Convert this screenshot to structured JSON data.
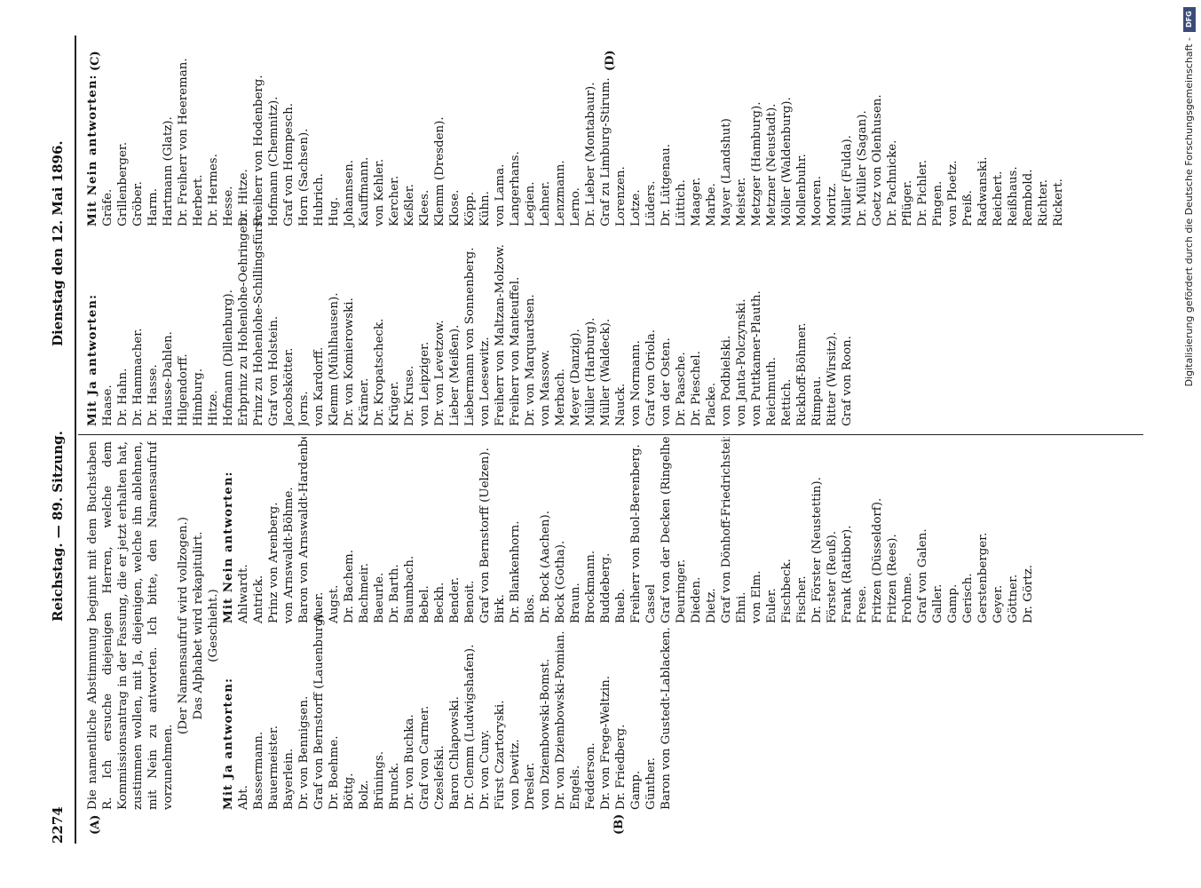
{
  "header": {
    "page_number": "2274",
    "session": "Reichstag. — 89. Sitzung.",
    "date": "Dienstag den 12. Mai 1896."
  },
  "markers": {
    "a": "(A)",
    "b": "(B)",
    "c": "(C)",
    "d": "(D)"
  },
  "intro_text": "Die namentliche Abstimmung beginnt mit dem Buchstaben R. Ich ersuche diejenigen Herren, welche dem Kommissionsantrag in der Fassung, die er jetzt erhalten hat, zustimmen wollen, mit Ja, diejenigen, welche ihn ablehnen, mit Nein zu antworten. Ich bitte, den Namensaufruf vorzunehmen.",
  "intro_lines": [
    "(Der Namensaufruf wird vollzogen.)",
    "Das Alphabet wird rekapitulirt.",
    "(Geschieht.)"
  ],
  "headings": {
    "ja": "Mit Ja antworten:",
    "nein": "Mit Nein antworten:"
  },
  "col1_ja": [
    "Abt.",
    "Bassermann.",
    "Bauermeister.",
    "Bayerlein.",
    "Dr. von Bennigsen.",
    "Graf von Bernstorff (Lauenburg).",
    "Dr. Boehme.",
    "Böttg.",
    "Bolz.",
    "Brünings.",
    "Brunck.",
    "Dr. von Buchka.",
    "Graf von Carmer.",
    "Czeslefski.",
    "Baron Chlapowski.",
    "Dr. Clemm (Ludwigshafen).",
    "Dr. von Cuny.",
    "Fürst Czartoryski.",
    "von Dewitz.",
    "Dresler.",
    "von Dziembowski-Bomst.",
    "Dr. von Dziembowski-Pomian.",
    "Engels.",
    "Fedderson.",
    "Dr. von Frege-Weltzin.",
    "Dr. Friedberg.",
    "Gamp.",
    "Günther.",
    "Baron von Gustedt-Lablacken."
  ],
  "col2_nein": [
    "Ahlwardt.",
    "Antrick.",
    "Prinz von Arenberg.",
    "von Arnswaldt-Böhme.",
    "Baron von Arnswaldt-Hardenbostel.",
    "Auer.",
    "Augst.",
    "Dr. Bachem.",
    "Bachmeir.",
    "Baeurle.",
    "Dr. Barth.",
    "Baumbach.",
    "Bebel.",
    "Beckh.",
    "Bender.",
    "Benoit.",
    "Graf von Bernstorff (Uelzen).",
    "Birk.",
    "Dr. Blankenhorn.",
    "Blos.",
    "Dr. Bock (Aachen).",
    "Bock (Gotha).",
    "Braun.",
    "Brockmann.",
    "Buddeberg.",
    "Bueb.",
    "Freiherr von Buol-Berenberg.",
    "Cassel",
    "Graf von der Decken (Ringelheim).",
    "Deuringer.",
    "Dieden.",
    "Dietz.",
    "Graf von Dönhoff-Friedrichstein.",
    "Ehni.",
    "von Elm.",
    "Euler.",
    "Fischbeck.",
    "Fischer.",
    "Dr. Förster (Neustettin).",
    "Förster (Reuß).",
    "Frank (Ratibor).",
    "Frese.",
    "Fritzen (Düsseldorf).",
    "Fritzen (Rees).",
    "Frohme.",
    "Graf von Galen.",
    "Galler.",
    "Gamp.",
    "Gerisch.",
    "Gerstenberger.",
    "Geyer.",
    "Göttner.",
    "Dr. Görtz."
  ],
  "col3_ja": [
    "Haase.",
    "Dr. Hahn.",
    "Dr. Hammacher.",
    "Dr. Hasse.",
    "Hausse-Dahlen.",
    "Hilgendorff.",
    "Himburg.",
    "Hitze.",
    "Hofmann (Dillenburg).",
    "Erbprinz zu Hohenlohe-Oehringen.",
    "Prinz zu Hohenlohe-Schillingsfürst.",
    "Graf von Holstein.",
    "Jacobskötter.",
    "Jorns.",
    "von Kardorff.",
    "Klemm (Mühlhausen).",
    "Dr. von Komierowski.",
    "Krämer.",
    "Dr. Kropatscheck.",
    "Krüger.",
    "Dr. Kruse.",
    "von Leipziger.",
    "Dr. von Levetzow.",
    "Lieber (Meißen).",
    "Liebermann von Sonnenberg.",
    "von Loesewitz.",
    "Freiherr von Maltzan-Molzow.",
    "Freiherr von Manteuffel.",
    "Dr. von Marquardsen.",
    "von Massow.",
    "Merbach.",
    "Meyer (Danzig).",
    "Müller (Harburg).",
    "Müller (Waldeck).",
    "Nauck.",
    "von Normann.",
    "Graf von Oriola.",
    "von der Osten.",
    "Dr. Paasche.",
    "Dr. Pieschel.",
    "Placke.",
    "von Podbielski.",
    "von Janta-Polczynski.",
    "von Puttkamer-Plauth.",
    "Reichmuth.",
    "Rettich.",
    "Rickhoff-Böhmer.",
    "Rimpau.",
    "Ritter (Wirsitz).",
    "Graf von Roon."
  ],
  "col4_nein": [
    "Gräfe.",
    "Grillenberger.",
    "Gröber.",
    "Harm.",
    "Hartmann (Glatz).",
    "Dr. Freiherr von Heereman.",
    "Herbert.",
    "Dr. Hermes.",
    "Hesse.",
    "Dr. Hitze.",
    "Freiherr von Hodenberg.",
    "Hofmann (Chemnitz).",
    "Graf von Hompesch.",
    "Horn (Sachsen).",
    "Hubrich.",
    "Hug.",
    "Johannsen.",
    "Kauffmann.",
    "von Kehler.",
    "Kercher.",
    "Keßler.",
    "Klees.",
    "Klemm (Dresden).",
    "Klose.",
    "Köpp.",
    "Kühn.",
    "von Lama.",
    "Langerhans.",
    "Legien.",
    "Lehner.",
    "Lenzmann.",
    "Lerno.",
    "Dr. Lieber (Montabaur).",
    "Graf zu Limburg-Stirum.",
    "Lorenzen.",
    "Lotze.",
    "Lüders.",
    "Dr. Lütgenau.",
    "Lüttich.",
    "Maager.",
    "Marbe.",
    "Mayer (Landshut)",
    "Meister.",
    "Metzger (Hamburg).",
    "Metzner (Neustadt).",
    "Möller (Waldenburg).",
    "Mollenbuhr.",
    "Mooren.",
    "Moritz.",
    "Müller (Fulda).",
    "Dr. Müller (Sagan).",
    "Goetz von Olenhusen.",
    "Dr. Pachnicke.",
    "Pflüger.",
    "Dr. Pichler.",
    "Pingen.",
    "von Ploetz.",
    "Preiß.",
    "Radwanski.",
    "Reichert.",
    "Reißhaus.",
    "Rembold.",
    "Richter.",
    "Rickert."
  ],
  "footer": {
    "credit": "Digitalisierung gefördert durch die Deutsche Forschungsgemeinschaft -",
    "logo": "DFG"
  }
}
